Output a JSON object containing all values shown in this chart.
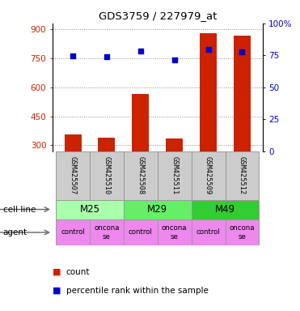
{
  "title": "GDS3759 / 227979_at",
  "samples": [
    "GSM425507",
    "GSM425510",
    "GSM425508",
    "GSM425511",
    "GSM425509",
    "GSM425512"
  ],
  "counts": [
    355,
    340,
    565,
    335,
    880,
    865
  ],
  "percentile_ranks": [
    74.5,
    74.0,
    78.5,
    71.5,
    79.5,
    78.0
  ],
  "ylim_left": [
    270,
    930
  ],
  "ylim_right": [
    0,
    100
  ],
  "yticks_left": [
    300,
    450,
    600,
    750,
    900
  ],
  "yticks_right": [
    0,
    25,
    50,
    75,
    100
  ],
  "cell_lines": [
    {
      "label": "M25",
      "span": [
        0,
        2
      ],
      "color": "#aaffaa"
    },
    {
      "label": "M29",
      "span": [
        2,
        4
      ],
      "color": "#66ee66"
    },
    {
      "label": "M49",
      "span": [
        4,
        6
      ],
      "color": "#33cc33"
    }
  ],
  "agents": [
    {
      "label": "control",
      "col": 0
    },
    {
      "label": "oncona\nse",
      "col": 1
    },
    {
      "label": "control",
      "col": 2
    },
    {
      "label": "oncona\nse",
      "col": 3
    },
    {
      "label": "control",
      "col": 4
    },
    {
      "label": "oncona\nse",
      "col": 5
    }
  ],
  "agent_color": "#ee88ee",
  "bar_color": "#cc2200",
  "dot_color": "#0000cc",
  "bar_width": 0.5,
  "sample_box_color": "#cccccc",
  "background_color": "#ffffff"
}
